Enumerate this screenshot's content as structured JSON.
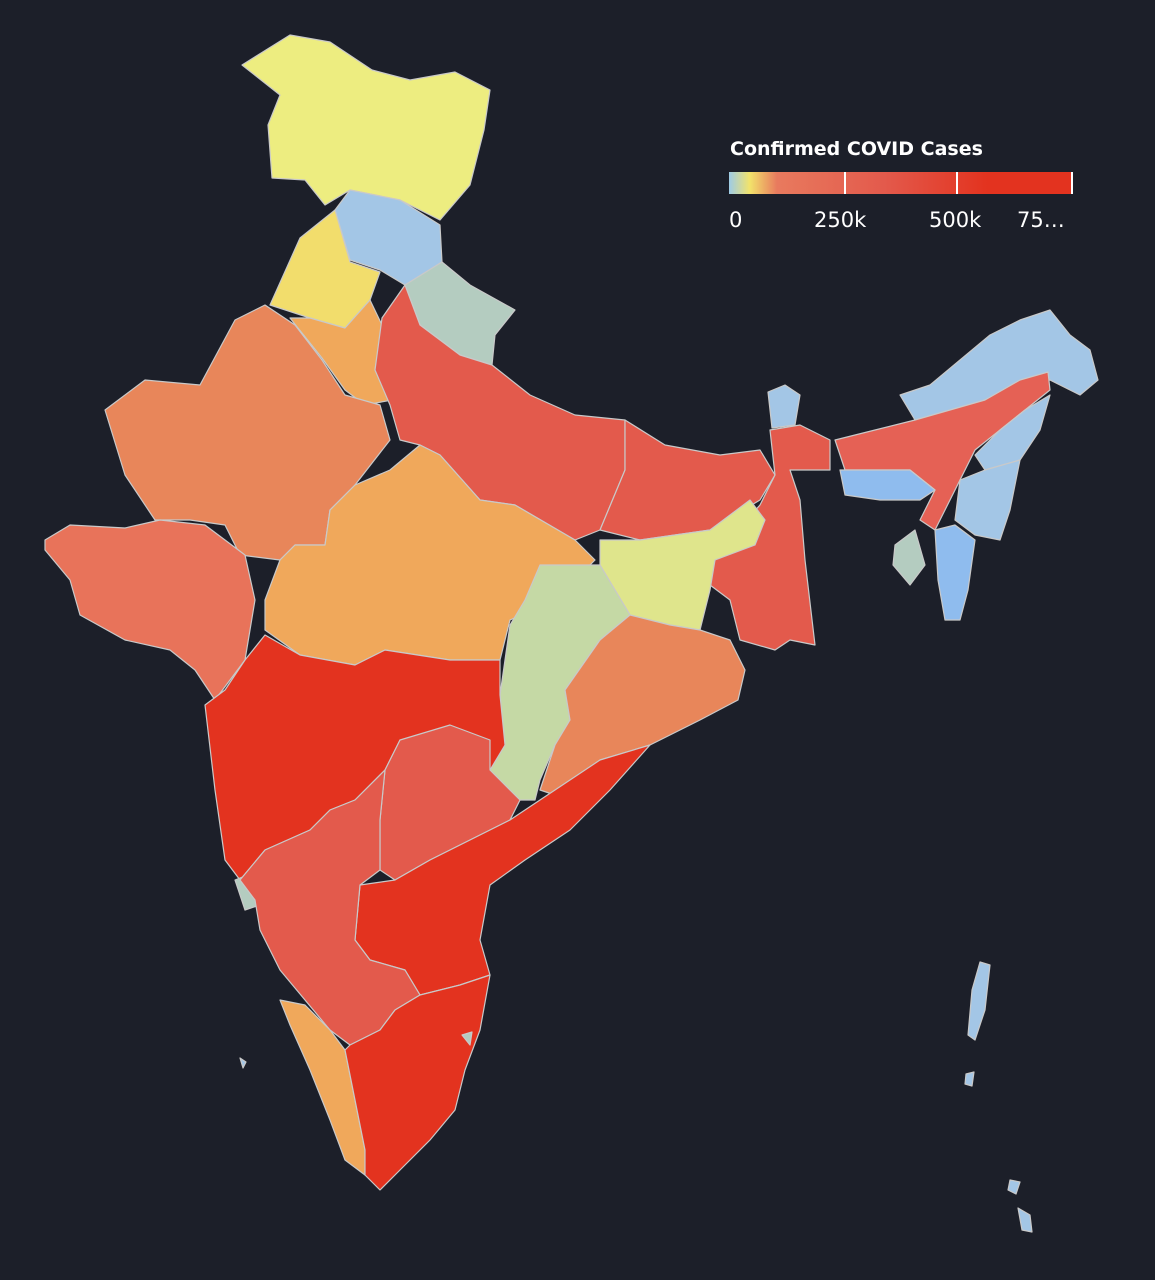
{
  "map": {
    "legend": {
      "title": "Confirmed COVID Cases",
      "tick_labels": [
        "0",
        "250k",
        "500k",
        "75…"
      ],
      "gradient_colors": [
        "#9ecbe6",
        "#f2e36b",
        "#e87a5e",
        "#e35a4c",
        "#e3331f"
      ]
    },
    "colors": {
      "background": "#1c1f29",
      "border": "#c9c9c9",
      "highest": "#e3331f",
      "high": "#e35a4c",
      "medium_high": "#e56155",
      "orange": "#e8865a",
      "light_orange": "#f0a85b",
      "yellow": "#eded80",
      "yellow_dark": "#f2dd6c",
      "light_blue": "#a3c6e6",
      "blue": "#8fbcee",
      "grey_green": "#b4ccc0",
      "pale_green": "#c5d9a5",
      "pale_yellow": "#dfe58c"
    }
  }
}
